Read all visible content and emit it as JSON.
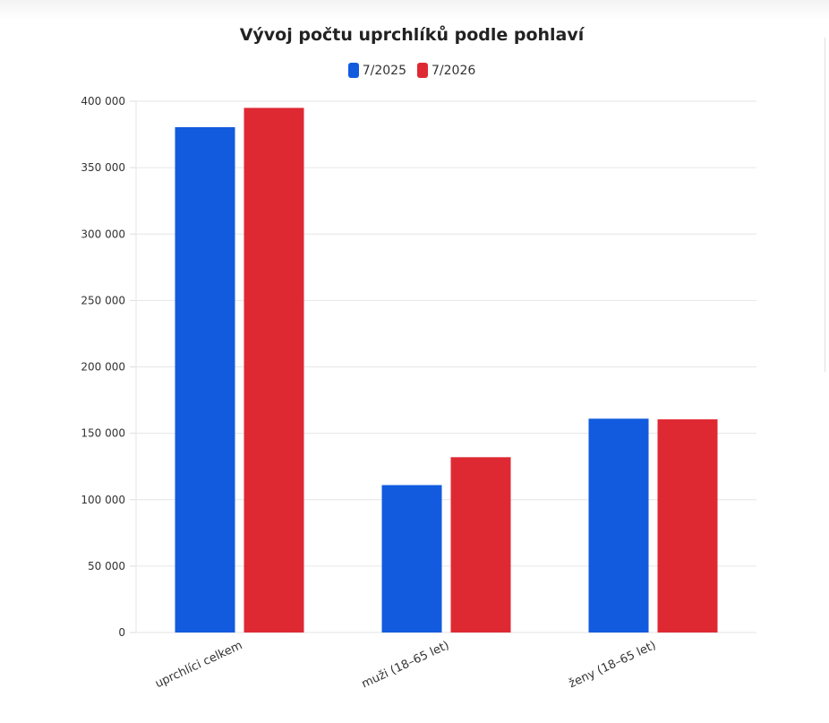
{
  "chart_data": {
    "type": "bar",
    "title": "Vývoj počtu uprchlíků podle pohlaví",
    "xlabel": "",
    "ylabel": "",
    "categories": [
      "uprchlíci celkem",
      "muži (18–65 let)",
      "ženy (18–65 let)"
    ],
    "series": [
      {
        "name": "7/2025",
        "color": "#125bdf",
        "values": [
          380500,
          111000,
          161000
        ]
      },
      {
        "name": "7/2026",
        "color": "#de2933",
        "values": [
          395000,
          132000,
          160500
        ]
      }
    ],
    "ylim": [
      0,
      400000
    ],
    "yticks": [
      0,
      50000,
      100000,
      150000,
      200000,
      250000,
      300000,
      350000,
      400000
    ],
    "ytick_labels": [
      "0",
      "50 000",
      "100 000",
      "150 000",
      "200 000",
      "250 000",
      "300 000",
      "350 000",
      "400 000"
    ],
    "grid": true,
    "legend_position": "top-center"
  }
}
